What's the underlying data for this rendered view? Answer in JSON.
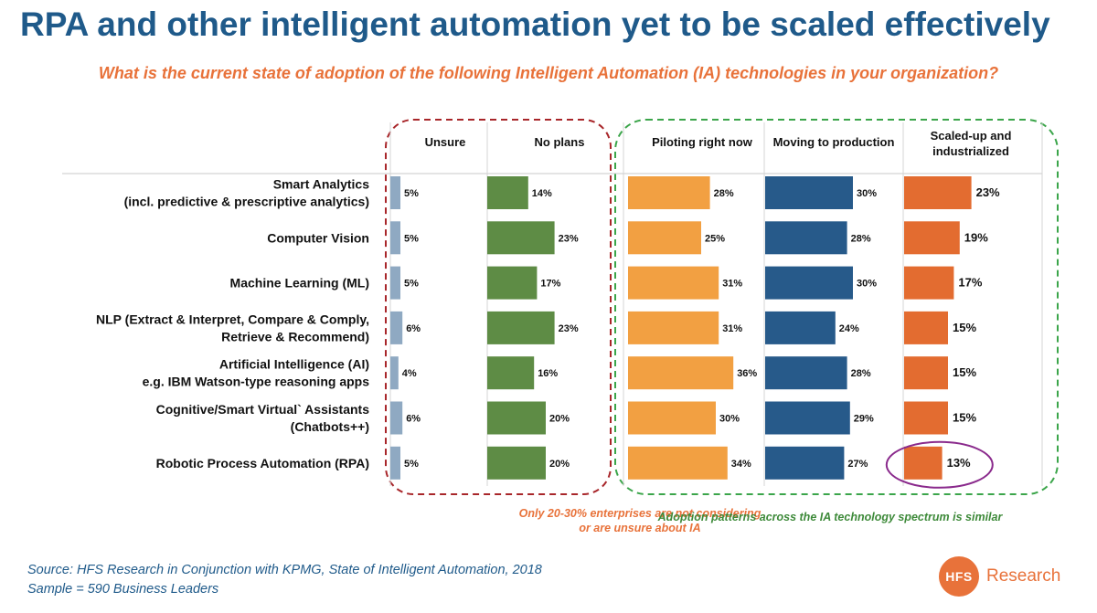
{
  "title": "RPA and other intelligent automation yet to be scaled effectively",
  "subtitle": "What is the current state of adoption of the following Intelligent Automation (IA) technologies in your organization?",
  "notes": {
    "left_line1": "Only 20-30% enterprises are not considering",
    "left_line2": "or are unsure about IA",
    "right": "Adoption patterns across the IA technology spectrum is similar"
  },
  "source": {
    "line1": "Source: HFS Research in Conjunction with KPMG, State of Intelligent Automation, 2018",
    "line2": "Sample = 590 Business Leaders"
  },
  "logo": {
    "mark": "HFS",
    "text": "Research"
  },
  "colors": {
    "unsure": "#8fa9c2",
    "no_plans": "#5e8c45",
    "piloting": "#f2a042",
    "moving": "#275a8a",
    "scaled": "#e36c30",
    "left_group_outline": "#a8262a",
    "right_group_outline": "#3ba54a",
    "highlight_ring": "#8a2a8c"
  },
  "chart_data": {
    "type": "bar",
    "orientation": "horizontal",
    "value_unit": "%",
    "categories": [
      [
        "Smart Analytics",
        "(incl. predictive & prescriptive analytics)"
      ],
      [
        "Computer Vision"
      ],
      [
        "Machine Learning (ML)"
      ],
      [
        "NLP (Extract & Interpret, Compare & Comply,",
        "Retrieve &  Recommend)"
      ],
      [
        "Artificial Intelligence (AI)",
        "e.g. IBM Watson-type reasoning apps"
      ],
      [
        "Cognitive/Smart Virtual` Assistants",
        "(Chatbots++)"
      ],
      [
        "Robotic Process Automation (RPA)"
      ]
    ],
    "series": [
      {
        "name": "Unsure",
        "values": [
          5,
          5,
          5,
          6,
          4,
          6,
          5
        ]
      },
      {
        "name": "No plans",
        "values": [
          14,
          23,
          17,
          23,
          16,
          20,
          20
        ]
      },
      {
        "name": "Piloting right now",
        "values": [
          28,
          25,
          31,
          31,
          36,
          30,
          34
        ]
      },
      {
        "name": "Moving to production",
        "values": [
          30,
          28,
          30,
          24,
          28,
          29,
          27
        ]
      },
      {
        "name": "Scaled-up and industrialized",
        "values": [
          23,
          19,
          17,
          15,
          15,
          15,
          13
        ]
      }
    ],
    "groups": [
      {
        "series": [
          "Unsure",
          "No plans"
        ],
        "note": "Only 20-30% enterprises are not considering or are unsure about IA"
      },
      {
        "series": [
          "Piloting right now",
          "Moving to production",
          "Scaled-up and industrialized"
        ],
        "note": "Adoption patterns across the IA technology spectrum is similar"
      }
    ],
    "highlight": {
      "series": "Scaled-up and industrialized",
      "category": "Robotic Process Automation (RPA)",
      "value": 13
    }
  }
}
